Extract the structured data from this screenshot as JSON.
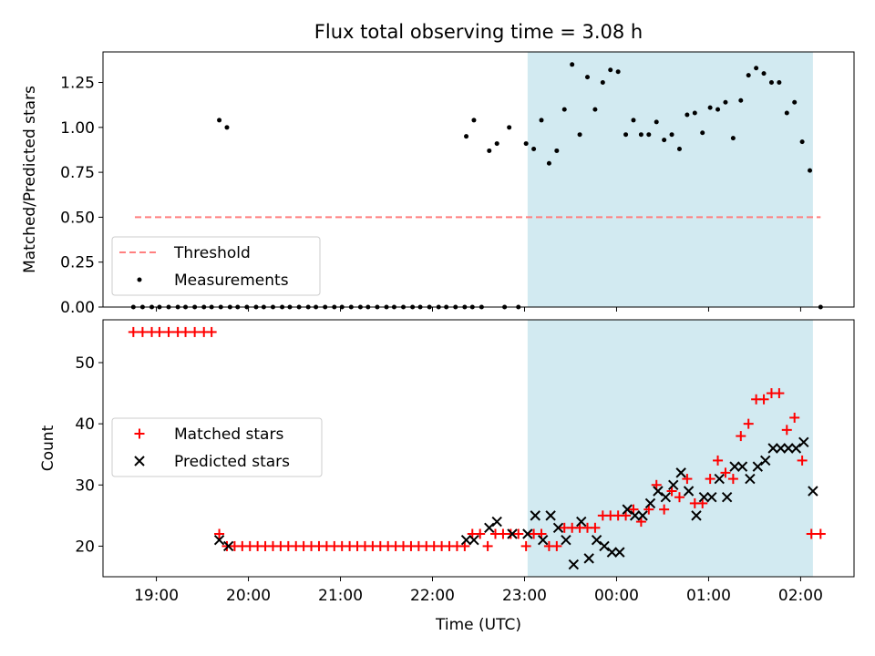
{
  "chart_data": [
    {
      "type": "scatter",
      "title": "Flux total observing time = 3.08 h",
      "ylabel": "Matched/Predicted stars",
      "ylim": [
        0,
        1.42
      ],
      "yticks": [
        0.0,
        0.25,
        0.5,
        0.75,
        1.0,
        1.25
      ],
      "ytick_labels": [
        "0.00",
        "0.25",
        "0.50",
        "0.75",
        "1.00",
        "1.25"
      ],
      "xlim_hours": [
        18.42,
        26.58
      ],
      "grid": false,
      "legend_position": "lower-left",
      "highlight_span": {
        "start": "23:02",
        "end": "02:08",
        "color": "#add8e6"
      },
      "threshold": {
        "name": "Threshold",
        "value": 0.5,
        "x_start": "18:46",
        "x_end": "02:13",
        "color": "#ff7f7f",
        "style": "dashed"
      },
      "series": [
        {
          "name": "Measurements",
          "color": "#000000",
          "marker": "dot",
          "points": [
            [
              "18:45",
              0
            ],
            [
              "18:51",
              0
            ],
            [
              "18:57",
              0
            ],
            [
              "19:02",
              0
            ],
            [
              "19:08",
              0
            ],
            [
              "19:14",
              0
            ],
            [
              "19:19",
              0
            ],
            [
              "19:25",
              0
            ],
            [
              "19:31",
              0
            ],
            [
              "19:36",
              0
            ],
            [
              "19:42",
              0
            ],
            [
              "19:48",
              0
            ],
            [
              "19:53",
              0
            ],
            [
              "19:59",
              0
            ],
            [
              "20:05",
              0
            ],
            [
              "20:10",
              0
            ],
            [
              "20:16",
              0
            ],
            [
              "20:22",
              0
            ],
            [
              "20:27",
              0
            ],
            [
              "20:33",
              0
            ],
            [
              "20:39",
              0
            ],
            [
              "20:44",
              0
            ],
            [
              "20:50",
              0
            ],
            [
              "20:56",
              0
            ],
            [
              "21:01",
              0
            ],
            [
              "21:07",
              0
            ],
            [
              "21:13",
              0
            ],
            [
              "21:18",
              0
            ],
            [
              "21:24",
              0
            ],
            [
              "21:30",
              0
            ],
            [
              "21:35",
              0
            ],
            [
              "21:41",
              0
            ],
            [
              "21:47",
              0
            ],
            [
              "21:52",
              0
            ],
            [
              "21:58",
              0
            ],
            [
              "22:04",
              0
            ],
            [
              "22:09",
              0
            ],
            [
              "22:15",
              0
            ],
            [
              "22:21",
              0
            ],
            [
              "22:26",
              0
            ],
            [
              "22:32",
              0
            ],
            [
              "22:47",
              0
            ],
            [
              "22:56",
              0
            ],
            [
              "02:13",
              0
            ],
            [
              "19:41",
              1.04
            ],
            [
              "19:46",
              1.0
            ],
            [
              "22:22",
              0.95
            ],
            [
              "22:27",
              1.04
            ],
            [
              "22:37",
              0.87
            ],
            [
              "22:42",
              0.91
            ],
            [
              "22:50",
              1.0
            ],
            [
              "23:01",
              0.91
            ],
            [
              "23:06",
              0.88
            ],
            [
              "23:11",
              1.04
            ],
            [
              "23:16",
              0.8
            ],
            [
              "23:21",
              0.87
            ],
            [
              "23:26",
              1.1
            ],
            [
              "23:31",
              1.35
            ],
            [
              "23:36",
              0.96
            ],
            [
              "23:41",
              1.28
            ],
            [
              "23:46",
              1.1
            ],
            [
              "23:51",
              1.25
            ],
            [
              "23:56",
              1.32
            ],
            [
              "00:01",
              1.31
            ],
            [
              "00:06",
              0.96
            ],
            [
              "00:11",
              1.04
            ],
            [
              "00:16",
              0.96
            ],
            [
              "00:21",
              0.96
            ],
            [
              "00:26",
              1.03
            ],
            [
              "00:31",
              0.93
            ],
            [
              "00:36",
              0.96
            ],
            [
              "00:41",
              0.88
            ],
            [
              "00:46",
              1.07
            ],
            [
              "00:51",
              1.08
            ],
            [
              "00:56",
              0.97
            ],
            [
              "01:01",
              1.11
            ],
            [
              "01:06",
              1.1
            ],
            [
              "01:11",
              1.14
            ],
            [
              "01:16",
              0.94
            ],
            [
              "01:21",
              1.15
            ],
            [
              "01:26",
              1.29
            ],
            [
              "01:31",
              1.33
            ],
            [
              "01:36",
              1.3
            ],
            [
              "01:41",
              1.25
            ],
            [
              "01:46",
              1.25
            ],
            [
              "01:51",
              1.08
            ],
            [
              "01:56",
              1.14
            ],
            [
              "02:01",
              0.92
            ],
            [
              "02:06",
              0.76
            ]
          ]
        }
      ]
    },
    {
      "type": "scatter",
      "title": "",
      "xlabel": "Time (UTC)",
      "ylabel": "Count",
      "ylim": [
        15,
        57
      ],
      "yticks": [
        20,
        30,
        40,
        50
      ],
      "xticks": [
        "19:00",
        "20:00",
        "21:00",
        "22:00",
        "23:00",
        "00:00",
        "01:00",
        "02:00"
      ],
      "xlim_hours": [
        18.42,
        26.58
      ],
      "grid": false,
      "legend_position": "center-left",
      "highlight_span": {
        "start": "23:02",
        "end": "02:08",
        "color": "#add8e6"
      },
      "series": [
        {
          "name": "Matched stars",
          "color": "#ff0000",
          "marker": "plus",
          "points": [
            [
              "18:45",
              55
            ],
            [
              "18:51",
              55
            ],
            [
              "18:57",
              55
            ],
            [
              "19:02",
              55
            ],
            [
              "19:08",
              55
            ],
            [
              "19:14",
              55
            ],
            [
              "19:19",
              55
            ],
            [
              "19:25",
              55
            ],
            [
              "19:31",
              55
            ],
            [
              "19:36",
              55
            ],
            [
              "19:41",
              22
            ],
            [
              "19:46",
              20
            ],
            [
              "19:51",
              20
            ],
            [
              "19:56",
              20
            ],
            [
              "20:01",
              20
            ],
            [
              "20:06",
              20
            ],
            [
              "20:11",
              20
            ],
            [
              "20:16",
              20
            ],
            [
              "20:21",
              20
            ],
            [
              "20:26",
              20
            ],
            [
              "20:31",
              20
            ],
            [
              "20:36",
              20
            ],
            [
              "20:41",
              20
            ],
            [
              "20:46",
              20
            ],
            [
              "20:51",
              20
            ],
            [
              "20:56",
              20
            ],
            [
              "21:01",
              20
            ],
            [
              "21:06",
              20
            ],
            [
              "21:11",
              20
            ],
            [
              "21:16",
              20
            ],
            [
              "21:21",
              20
            ],
            [
              "21:26",
              20
            ],
            [
              "21:31",
              20
            ],
            [
              "21:36",
              20
            ],
            [
              "21:41",
              20
            ],
            [
              "21:46",
              20
            ],
            [
              "21:51",
              20
            ],
            [
              "21:56",
              20
            ],
            [
              "22:01",
              20
            ],
            [
              "22:06",
              20
            ],
            [
              "22:11",
              20
            ],
            [
              "22:16",
              20
            ],
            [
              "22:21",
              20
            ],
            [
              "22:26",
              22
            ],
            [
              "22:31",
              22
            ],
            [
              "22:36",
              20
            ],
            [
              "22:41",
              22
            ],
            [
              "22:46",
              22
            ],
            [
              "22:51",
              22
            ],
            [
              "22:56",
              22
            ],
            [
              "23:01",
              20
            ],
            [
              "23:06",
              22
            ],
            [
              "23:11",
              22
            ],
            [
              "23:16",
              20
            ],
            [
              "23:21",
              20
            ],
            [
              "23:26",
              23
            ],
            [
              "23:31",
              23
            ],
            [
              "23:36",
              23
            ],
            [
              "23:41",
              23
            ],
            [
              "23:46",
              23
            ],
            [
              "23:51",
              25
            ],
            [
              "23:56",
              25
            ],
            [
              "00:01",
              25
            ],
            [
              "00:06",
              25
            ],
            [
              "00:11",
              26
            ],
            [
              "00:16",
              24
            ],
            [
              "00:21",
              26
            ],
            [
              "00:26",
              30
            ],
            [
              "00:31",
              26
            ],
            [
              "00:36",
              29
            ],
            [
              "00:41",
              28
            ],
            [
              "00:46",
              31
            ],
            [
              "00:51",
              27
            ],
            [
              "00:56",
              27
            ],
            [
              "01:01",
              31
            ],
            [
              "01:06",
              34
            ],
            [
              "01:11",
              32
            ],
            [
              "01:16",
              31
            ],
            [
              "01:21",
              38
            ],
            [
              "01:26",
              40
            ],
            [
              "01:31",
              44
            ],
            [
              "01:36",
              44
            ],
            [
              "01:41",
              45
            ],
            [
              "01:46",
              45
            ],
            [
              "01:51",
              39
            ],
            [
              "01:56",
              41
            ],
            [
              "02:01",
              34
            ],
            [
              "02:07",
              22
            ],
            [
              "02:13",
              22
            ]
          ]
        },
        {
          "name": "Predicted stars",
          "color": "#000000",
          "marker": "x",
          "points": [
            [
              "19:41",
              21
            ],
            [
              "19:47",
              20
            ],
            [
              "22:22",
              21
            ],
            [
              "22:27",
              21
            ],
            [
              "22:37",
              23
            ],
            [
              "22:42",
              24
            ],
            [
              "22:52",
              22
            ],
            [
              "23:02",
              22
            ],
            [
              "23:07",
              25
            ],
            [
              "23:12",
              21
            ],
            [
              "23:17",
              25
            ],
            [
              "23:22",
              23
            ],
            [
              "23:27",
              21
            ],
            [
              "23:32",
              17
            ],
            [
              "23:37",
              24
            ],
            [
              "23:42",
              18
            ],
            [
              "23:47",
              21
            ],
            [
              "23:52",
              20
            ],
            [
              "23:57",
              19
            ],
            [
              "00:02",
              19
            ],
            [
              "00:07",
              26
            ],
            [
              "00:12",
              25
            ],
            [
              "00:17",
              25
            ],
            [
              "00:22",
              27
            ],
            [
              "00:27",
              29
            ],
            [
              "00:32",
              28
            ],
            [
              "00:37",
              30
            ],
            [
              "00:42",
              32
            ],
            [
              "00:47",
              29
            ],
            [
              "00:52",
              25
            ],
            [
              "00:57",
              28
            ],
            [
              "01:02",
              28
            ],
            [
              "01:07",
              31
            ],
            [
              "01:12",
              28
            ],
            [
              "01:17",
              33
            ],
            [
              "01:22",
              33
            ],
            [
              "01:27",
              31
            ],
            [
              "01:32",
              33
            ],
            [
              "01:37",
              34
            ],
            [
              "01:42",
              36
            ],
            [
              "01:47",
              36
            ],
            [
              "01:52",
              36
            ],
            [
              "01:57",
              36
            ],
            [
              "02:02",
              37
            ],
            [
              "02:08",
              29
            ]
          ]
        }
      ]
    }
  ]
}
